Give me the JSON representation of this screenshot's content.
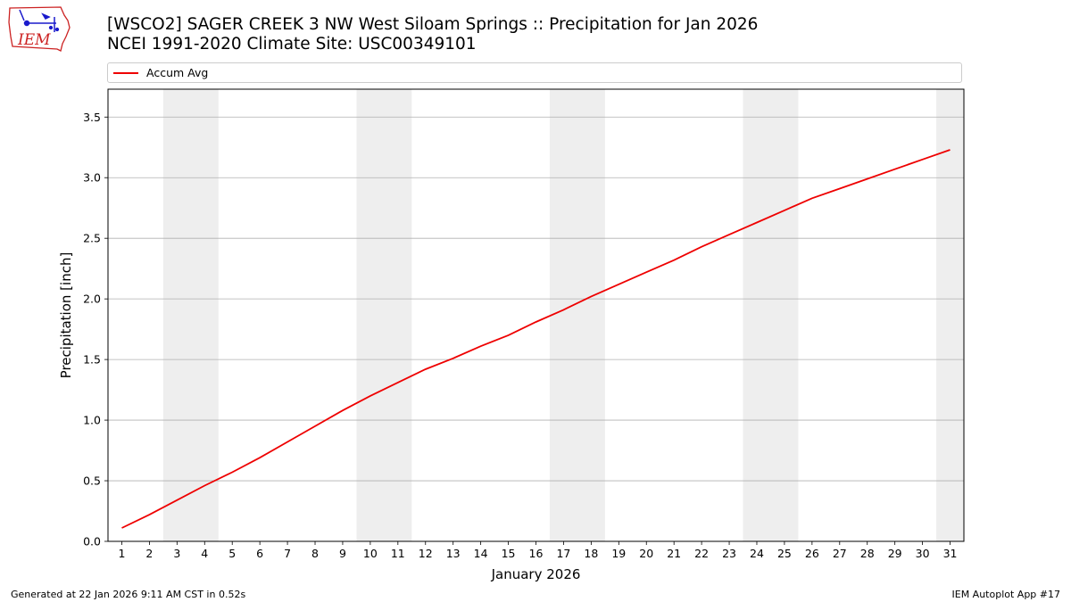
{
  "header": {
    "title_line1": "[WSCO2] SAGER CREEK 3 NW West Siloam Springs :: Precipitation for Jan 2026",
    "title_line2": "NCEI 1991-2020 Climate Site: USC00349101",
    "logo_text": "IEM"
  },
  "footer": {
    "generated": "Generated at 22 Jan 2026 9:11 AM CST in 0.52s",
    "app": "IEM Autoplot App #17"
  },
  "colors": {
    "line": "#ee0000",
    "weekend_band": "#eeeeee",
    "grid": "#b0b0b0",
    "logo_red": "#cc2222",
    "logo_blue": "#1a1acc"
  },
  "chart_data": {
    "type": "line",
    "title": "[WSCO2] SAGER CREEK 3 NW West Siloam Springs :: Precipitation for Jan 2026",
    "xlabel": "January 2026",
    "ylabel": "Precipitation [inch]",
    "xlim": [
      0.5,
      31.5
    ],
    "ylim": [
      0,
      3.73
    ],
    "x_ticks": [
      1,
      2,
      3,
      4,
      5,
      6,
      7,
      8,
      9,
      10,
      11,
      12,
      13,
      14,
      15,
      16,
      17,
      18,
      19,
      20,
      21,
      22,
      23,
      24,
      25,
      26,
      27,
      28,
      29,
      30,
      31
    ],
    "y_ticks": [
      "0.0",
      "0.5",
      "1.0",
      "1.5",
      "2.0",
      "2.5",
      "3.0",
      "3.5"
    ],
    "grid": "horizontal",
    "legend_position": "top",
    "weekend_bands": [
      [
        2.5,
        4.5
      ],
      [
        9.5,
        11.5
      ],
      [
        16.5,
        18.5
      ],
      [
        23.5,
        25.5
      ],
      [
        30.5,
        31.5
      ]
    ],
    "series": [
      {
        "name": "Accum Avg",
        "x": [
          1,
          2,
          3,
          4,
          5,
          6,
          7,
          8,
          9,
          10,
          11,
          12,
          13,
          14,
          15,
          16,
          17,
          18,
          19,
          20,
          21,
          22,
          23,
          24,
          25,
          26,
          27,
          28,
          29,
          30,
          31
        ],
        "values": [
          0.11,
          0.22,
          0.34,
          0.46,
          0.57,
          0.69,
          0.82,
          0.95,
          1.08,
          1.2,
          1.31,
          1.42,
          1.51,
          1.61,
          1.7,
          1.81,
          1.91,
          2.02,
          2.12,
          2.22,
          2.32,
          2.43,
          2.53,
          2.63,
          2.73,
          2.83,
          2.91,
          2.99,
          3.07,
          3.15,
          3.23
        ]
      }
    ]
  }
}
